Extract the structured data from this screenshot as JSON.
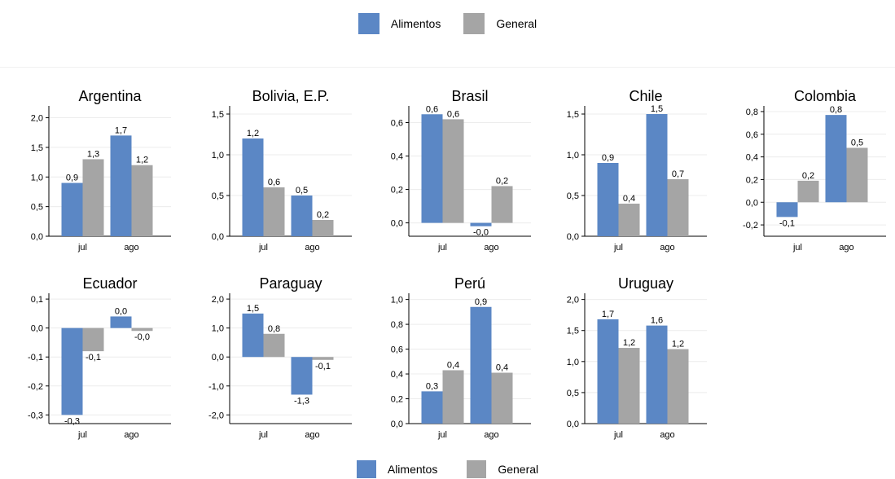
{
  "legend": {
    "series1": "Alimentos",
    "series2": "General",
    "color1": "#5b87c5",
    "color2": "#a5a5a5"
  },
  "chart_data": [
    {
      "type": "bar",
      "title": "Argentina",
      "categories": [
        "jul",
        "ago"
      ],
      "series": [
        {
          "name": "Alimentos",
          "values": [
            0.9,
            1.7
          ],
          "labels": [
            "0,9",
            "1,7"
          ]
        },
        {
          "name": "General",
          "values": [
            1.3,
            1.2
          ],
          "labels": [
            "1,3",
            "1,2"
          ]
        }
      ],
      "yticks": [
        0,
        0.5,
        1,
        1.5,
        2
      ],
      "ytick_labels": [
        "0,0",
        "0,5",
        "1,0",
        "1,5",
        "2,0"
      ],
      "ylim": [
        0,
        2.2
      ],
      "grid": true
    },
    {
      "type": "bar",
      "title": "Bolivia, E.P.",
      "categories": [
        "jul",
        "ago"
      ],
      "series": [
        {
          "name": "Alimentos",
          "values": [
            1.2,
            0.5
          ],
          "labels": [
            "1,2",
            "0,5"
          ]
        },
        {
          "name": "General",
          "values": [
            0.6,
            0.2
          ],
          "labels": [
            "0,6",
            "0,2"
          ]
        }
      ],
      "yticks": [
        0,
        0.5,
        1,
        1.5
      ],
      "ytick_labels": [
        "0,0",
        "0,5",
        "1,0",
        "1,5"
      ],
      "ylim": [
        0,
        1.6
      ],
      "grid": true
    },
    {
      "type": "bar",
      "title": "Brasil",
      "categories": [
        "jul",
        "ago"
      ],
      "series": [
        {
          "name": "Alimentos",
          "values": [
            0.65,
            -0.02
          ],
          "labels": [
            "0,6",
            "-0,0"
          ]
        },
        {
          "name": "General",
          "values": [
            0.62,
            0.22
          ],
          "labels": [
            "0,6",
            "0,2"
          ]
        }
      ],
      "yticks": [
        0,
        0.2,
        0.4,
        0.6
      ],
      "ytick_labels": [
        "0,0",
        "0,2",
        "0,4",
        "0,6"
      ],
      "ylim": [
        -0.08,
        0.7
      ],
      "grid": true
    },
    {
      "type": "bar",
      "title": "Chile",
      "categories": [
        "jul",
        "ago"
      ],
      "series": [
        {
          "name": "Alimentos",
          "values": [
            0.9,
            1.5
          ],
          "labels": [
            "0,9",
            "1,5"
          ]
        },
        {
          "name": "General",
          "values": [
            0.4,
            0.7
          ],
          "labels": [
            "0,4",
            "0,7"
          ]
        }
      ],
      "yticks": [
        0,
        0.5,
        1,
        1.5
      ],
      "ytick_labels": [
        "0,0",
        "0,5",
        "1,0",
        "1,5"
      ],
      "ylim": [
        0,
        1.6
      ],
      "grid": true
    },
    {
      "type": "bar",
      "title": "Colombia",
      "categories": [
        "jul",
        "ago"
      ],
      "series": [
        {
          "name": "Alimentos",
          "values": [
            -0.13,
            0.77
          ],
          "labels": [
            "-0,1",
            "0,8"
          ]
        },
        {
          "name": "General",
          "values": [
            0.19,
            0.48
          ],
          "labels": [
            "0,2",
            "0,5"
          ]
        }
      ],
      "yticks": [
        -0.2,
        0,
        0.2,
        0.4,
        0.6,
        0.8
      ],
      "ytick_labels": [
        "-0,2",
        "0,0",
        "0,2",
        "0,4",
        "0,6",
        "0,8"
      ],
      "ylim": [
        -0.3,
        0.85
      ],
      "grid": true
    },
    {
      "type": "bar",
      "title": "Ecuador",
      "categories": [
        "jul",
        "ago"
      ],
      "series": [
        {
          "name": "Alimentos",
          "values": [
            -0.3,
            0.04
          ],
          "labels": [
            "-0,3",
            "0,0"
          ]
        },
        {
          "name": "General",
          "values": [
            -0.08,
            -0.01
          ],
          "labels": [
            "-0,1",
            "-0,0"
          ]
        }
      ],
      "yticks": [
        -0.3,
        -0.2,
        -0.1,
        0,
        0.1
      ],
      "ytick_labels": [
        "-0,3",
        "-0,2",
        "-0,1",
        "0,0",
        "0,1"
      ],
      "ylim": [
        -0.33,
        0.12
      ],
      "grid": true
    },
    {
      "type": "bar",
      "title": "Paraguay",
      "categories": [
        "jul",
        "ago"
      ],
      "series": [
        {
          "name": "Alimentos",
          "values": [
            1.5,
            -1.3
          ],
          "labels": [
            "1,5",
            "-1,3"
          ]
        },
        {
          "name": "General",
          "values": [
            0.8,
            -0.1
          ],
          "labels": [
            "0,8",
            "-0,1"
          ]
        }
      ],
      "yticks": [
        -2,
        -1,
        0,
        1,
        2
      ],
      "ytick_labels": [
        "-2,0",
        "-1,0",
        "0,0",
        "1,0",
        "2,0"
      ],
      "ylim": [
        -2.3,
        2.2
      ],
      "grid": true
    },
    {
      "type": "bar",
      "title": "Perú",
      "categories": [
        "jul",
        "ago"
      ],
      "series": [
        {
          "name": "Alimentos",
          "values": [
            0.26,
            0.94
          ],
          "labels": [
            "0,3",
            "0,9"
          ]
        },
        {
          "name": "General",
          "values": [
            0.43,
            0.41
          ],
          "labels": [
            "0,4",
            "0,4"
          ]
        }
      ],
      "yticks": [
        0,
        0.2,
        0.4,
        0.6,
        0.8,
        1
      ],
      "ytick_labels": [
        "0,0",
        "0,2",
        "0,4",
        "0,6",
        "0,8",
        "1,0"
      ],
      "ylim": [
        0,
        1.05
      ],
      "grid": true
    },
    {
      "type": "bar",
      "title": "Uruguay",
      "categories": [
        "jul",
        "ago"
      ],
      "series": [
        {
          "name": "Alimentos",
          "values": [
            1.68,
            1.58
          ],
          "labels": [
            "1,7",
            "1,6"
          ]
        },
        {
          "name": "General",
          "values": [
            1.22,
            1.2
          ],
          "labels": [
            "1,2",
            "1,2"
          ]
        }
      ],
      "yticks": [
        0,
        0.5,
        1,
        1.5,
        2
      ],
      "ytick_labels": [
        "0,0",
        "0,5",
        "1,0",
        "1,5",
        "2,0"
      ],
      "ylim": [
        0,
        2.1
      ],
      "grid": true
    }
  ]
}
